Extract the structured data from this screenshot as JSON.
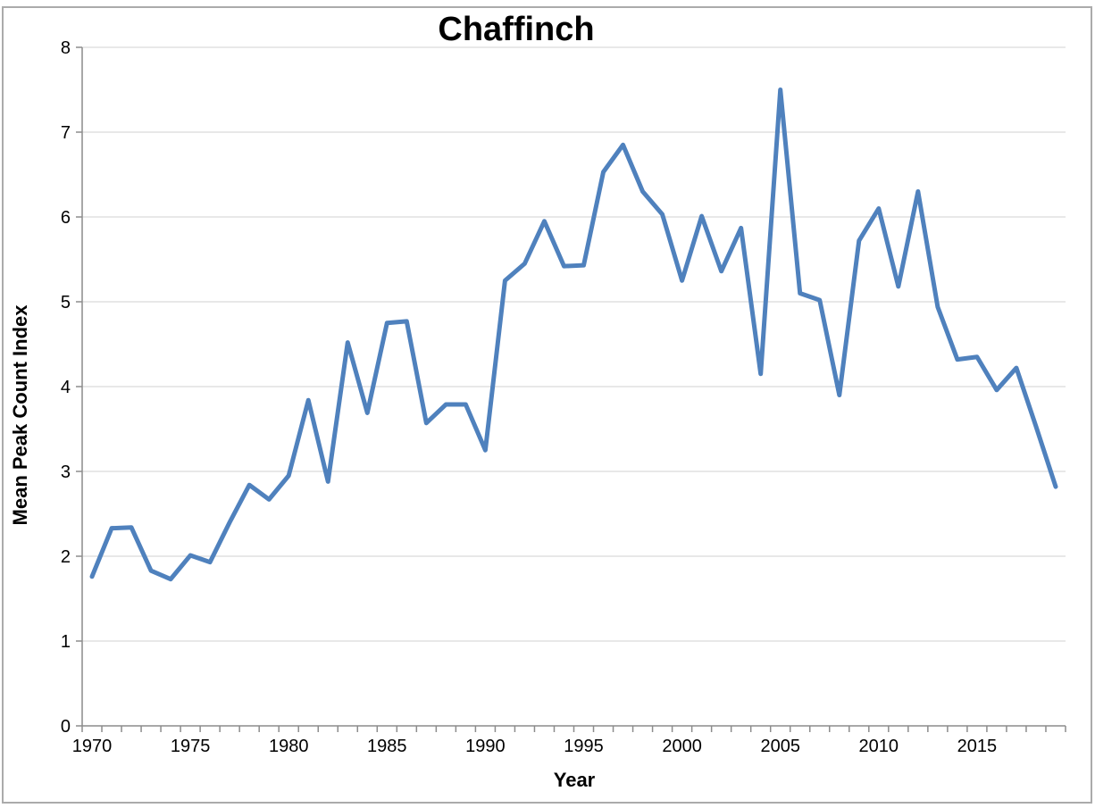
{
  "window": {
    "background": "#ffffff",
    "border_color": "#ababab"
  },
  "chart_data": {
    "type": "line",
    "title": "Chaffinch",
    "xlabel": "Year",
    "ylabel": "Mean Peak Count Index",
    "legend": "none",
    "grid": "horizontal",
    "ylim": [
      0,
      8
    ],
    "yticks": [
      0,
      1,
      2,
      3,
      4,
      5,
      6,
      7,
      8
    ],
    "ytick_labels": [
      "0",
      "1",
      "2",
      "3",
      "4",
      "5",
      "6",
      "7",
      "8"
    ],
    "xtick_labels": [
      "1970",
      "1975",
      "1980",
      "1985",
      "1990",
      "1995",
      "2000",
      "2005",
      "2010",
      "2015"
    ],
    "x": [
      1970,
      1971,
      1972,
      1973,
      1974,
      1975,
      1976,
      1977,
      1978,
      1979,
      1980,
      1981,
      1982,
      1983,
      1984,
      1985,
      1986,
      1987,
      1988,
      1989,
      1990,
      1991,
      1992,
      1993,
      1994,
      1995,
      1996,
      1997,
      1998,
      1999,
      2000,
      2001,
      2002,
      2003,
      2004,
      2005,
      2006,
      2007,
      2008,
      2009,
      2010,
      2011,
      2012,
      2013,
      2014,
      2015,
      2016,
      2017,
      2018,
      2019
    ],
    "values": [
      1.76,
      2.33,
      2.34,
      1.83,
      1.73,
      2.01,
      1.93,
      2.4,
      2.84,
      2.67,
      2.95,
      3.84,
      2.88,
      4.52,
      3.69,
      4.75,
      4.77,
      3.57,
      3.79,
      3.79,
      3.25,
      5.25,
      5.45,
      5.95,
      5.42,
      5.43,
      6.53,
      6.85,
      6.3,
      6.03,
      5.25,
      6.01,
      5.36,
      5.87,
      4.15,
      7.5,
      5.1,
      5.02,
      3.9,
      5.72,
      6.1,
      5.18,
      6.3,
      4.94,
      4.32,
      4.35,
      3.96,
      4.22,
      3.53,
      2.82
    ],
    "line_color": "#4f81bd",
    "line_width": 5,
    "gridline_color": "#d9d9d9",
    "axis_color": "#8c8c8c",
    "text_color": "#000000"
  }
}
